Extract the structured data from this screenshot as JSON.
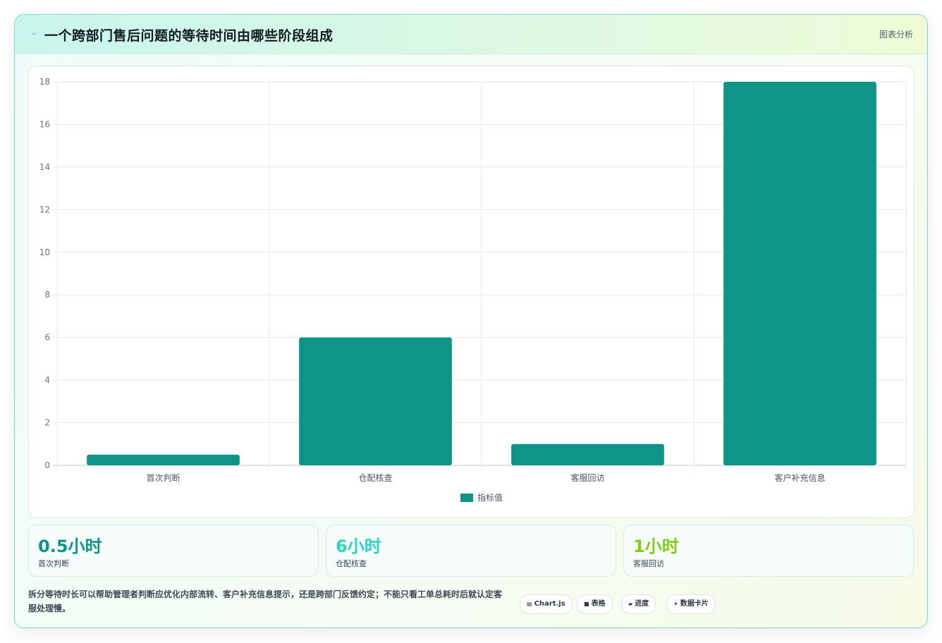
{
  "header": {
    "title": "一个跨部门售后问题的等待时间由哪些阶段组成",
    "tag": "图表分析"
  },
  "colors": {
    "bar": "#0f9488",
    "grid": "#e5e9ec",
    "axis_text": "#6b7280",
    "stat_values": [
      "#0f9488",
      "#2dd4bf",
      "#84cc16"
    ]
  },
  "chart_data": {
    "type": "bar",
    "categories": [
      "首次判断",
      "仓配核查",
      "客服回访",
      "客户补充信息"
    ],
    "series": [
      {
        "name": "指标值",
        "values": [
          0.5,
          6,
          1,
          18
        ]
      }
    ],
    "ylim": [
      0,
      18
    ],
    "yticks": [
      0,
      2,
      4,
      6,
      8,
      10,
      12,
      14,
      16,
      18
    ],
    "grid": true,
    "legend": "bottom"
  },
  "stats": [
    {
      "value": "0.5小时",
      "label": "首次判断"
    },
    {
      "value": "6小时",
      "label": "仓配核查"
    },
    {
      "value": "1小时",
      "label": "客服回访"
    }
  ],
  "note": "拆分等待时长可以帮助管理者判断应优化内部流转、客户补充信息提示，还是跨部门反馈约定；不能只看工单总耗时后就认定客服处理慢。",
  "pills": [
    {
      "icon": "table-icon",
      "label": "Chart.js"
    },
    {
      "icon": "grid-icon",
      "label": "表格"
    },
    {
      "icon": "progress-icon",
      "label": "进度"
    },
    {
      "icon": "sparkle-icon",
      "label": "数据卡片"
    }
  ]
}
